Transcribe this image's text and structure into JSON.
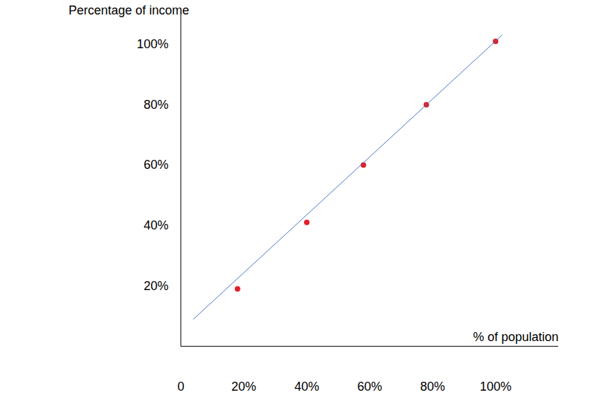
{
  "chart_data": {
    "type": "scatter",
    "y_label": "Percentage of income",
    "x_label": "% of population",
    "xlim": [
      0,
      120
    ],
    "ylim": [
      0,
      110
    ],
    "xticks": [
      0,
      {
        "value": 20,
        "label": "20%"
      },
      {
        "value": 40,
        "label": "40%"
      },
      {
        "value": 60,
        "label": "60%"
      },
      {
        "value": 80,
        "label": "80%"
      },
      {
        "value": 100,
        "label": "100%"
      }
    ],
    "yticks": [
      {
        "value": 20,
        "label": "20%"
      },
      {
        "value": 40,
        "label": "40%"
      },
      {
        "value": 60,
        "label": "60%"
      },
      {
        "value": 80,
        "label": "80%"
      },
      {
        "value": 100,
        "label": "100%"
      }
    ],
    "grid": false,
    "series": [
      {
        "type": "scatter",
        "marker": "circle",
        "color": "#e0202b",
        "x": [
          18,
          40,
          58,
          78,
          100
        ],
        "values": [
          19,
          41,
          60,
          80,
          101
        ]
      },
      {
        "type": "line",
        "line_style": "solid",
        "color": "#4472c4",
        "x": [
          4,
          102
        ],
        "values": [
          9,
          103
        ]
      }
    ]
  }
}
